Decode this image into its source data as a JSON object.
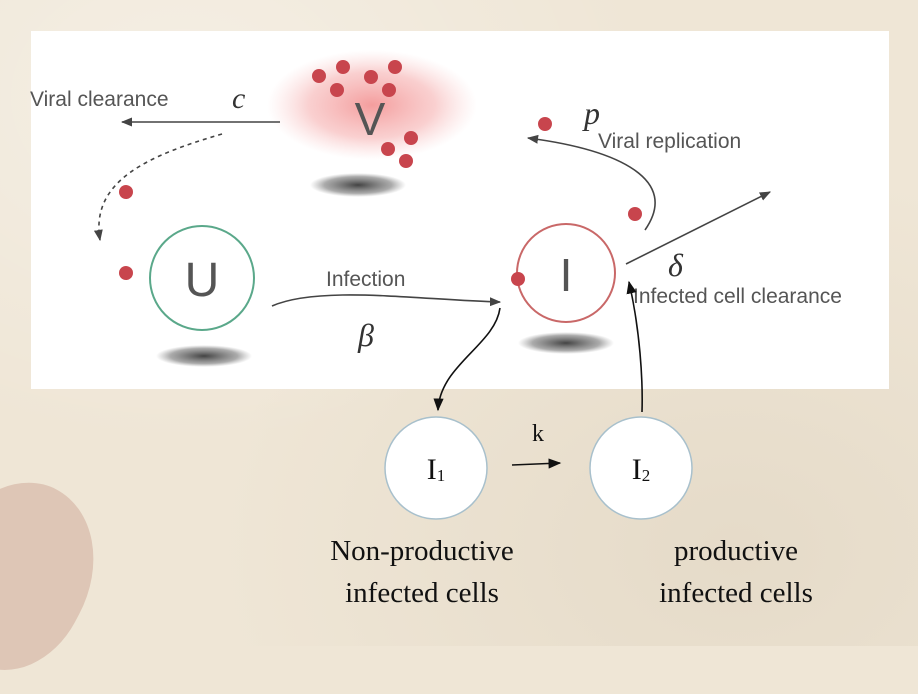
{
  "model": {
    "virus_label": "V",
    "uninfected_label": "U",
    "infected_label": "I",
    "viral_clearance_label": "Viral clearance",
    "viral_clearance_param": "c",
    "infection_label": "Infection",
    "infection_param": "β",
    "replication_param": "p",
    "replication_label": "Viral replication",
    "infected_clearance_param": "δ",
    "infected_clearance_label": "Infected cell clearance"
  },
  "extension": {
    "i1_base": "I",
    "i1_sub": "1",
    "i2_base": "I",
    "i2_sub": "2",
    "transition_param": "k",
    "i1_caption_line1": "Non-productive",
    "i1_caption_line2": "infected cells",
    "i2_caption_line1": "productive",
    "i2_caption_line2": "infected cells"
  },
  "colors": {
    "uninfected": "#5aa88a",
    "infected": "#c96868",
    "virion": "#c8454d",
    "arrow": "#444444"
  }
}
